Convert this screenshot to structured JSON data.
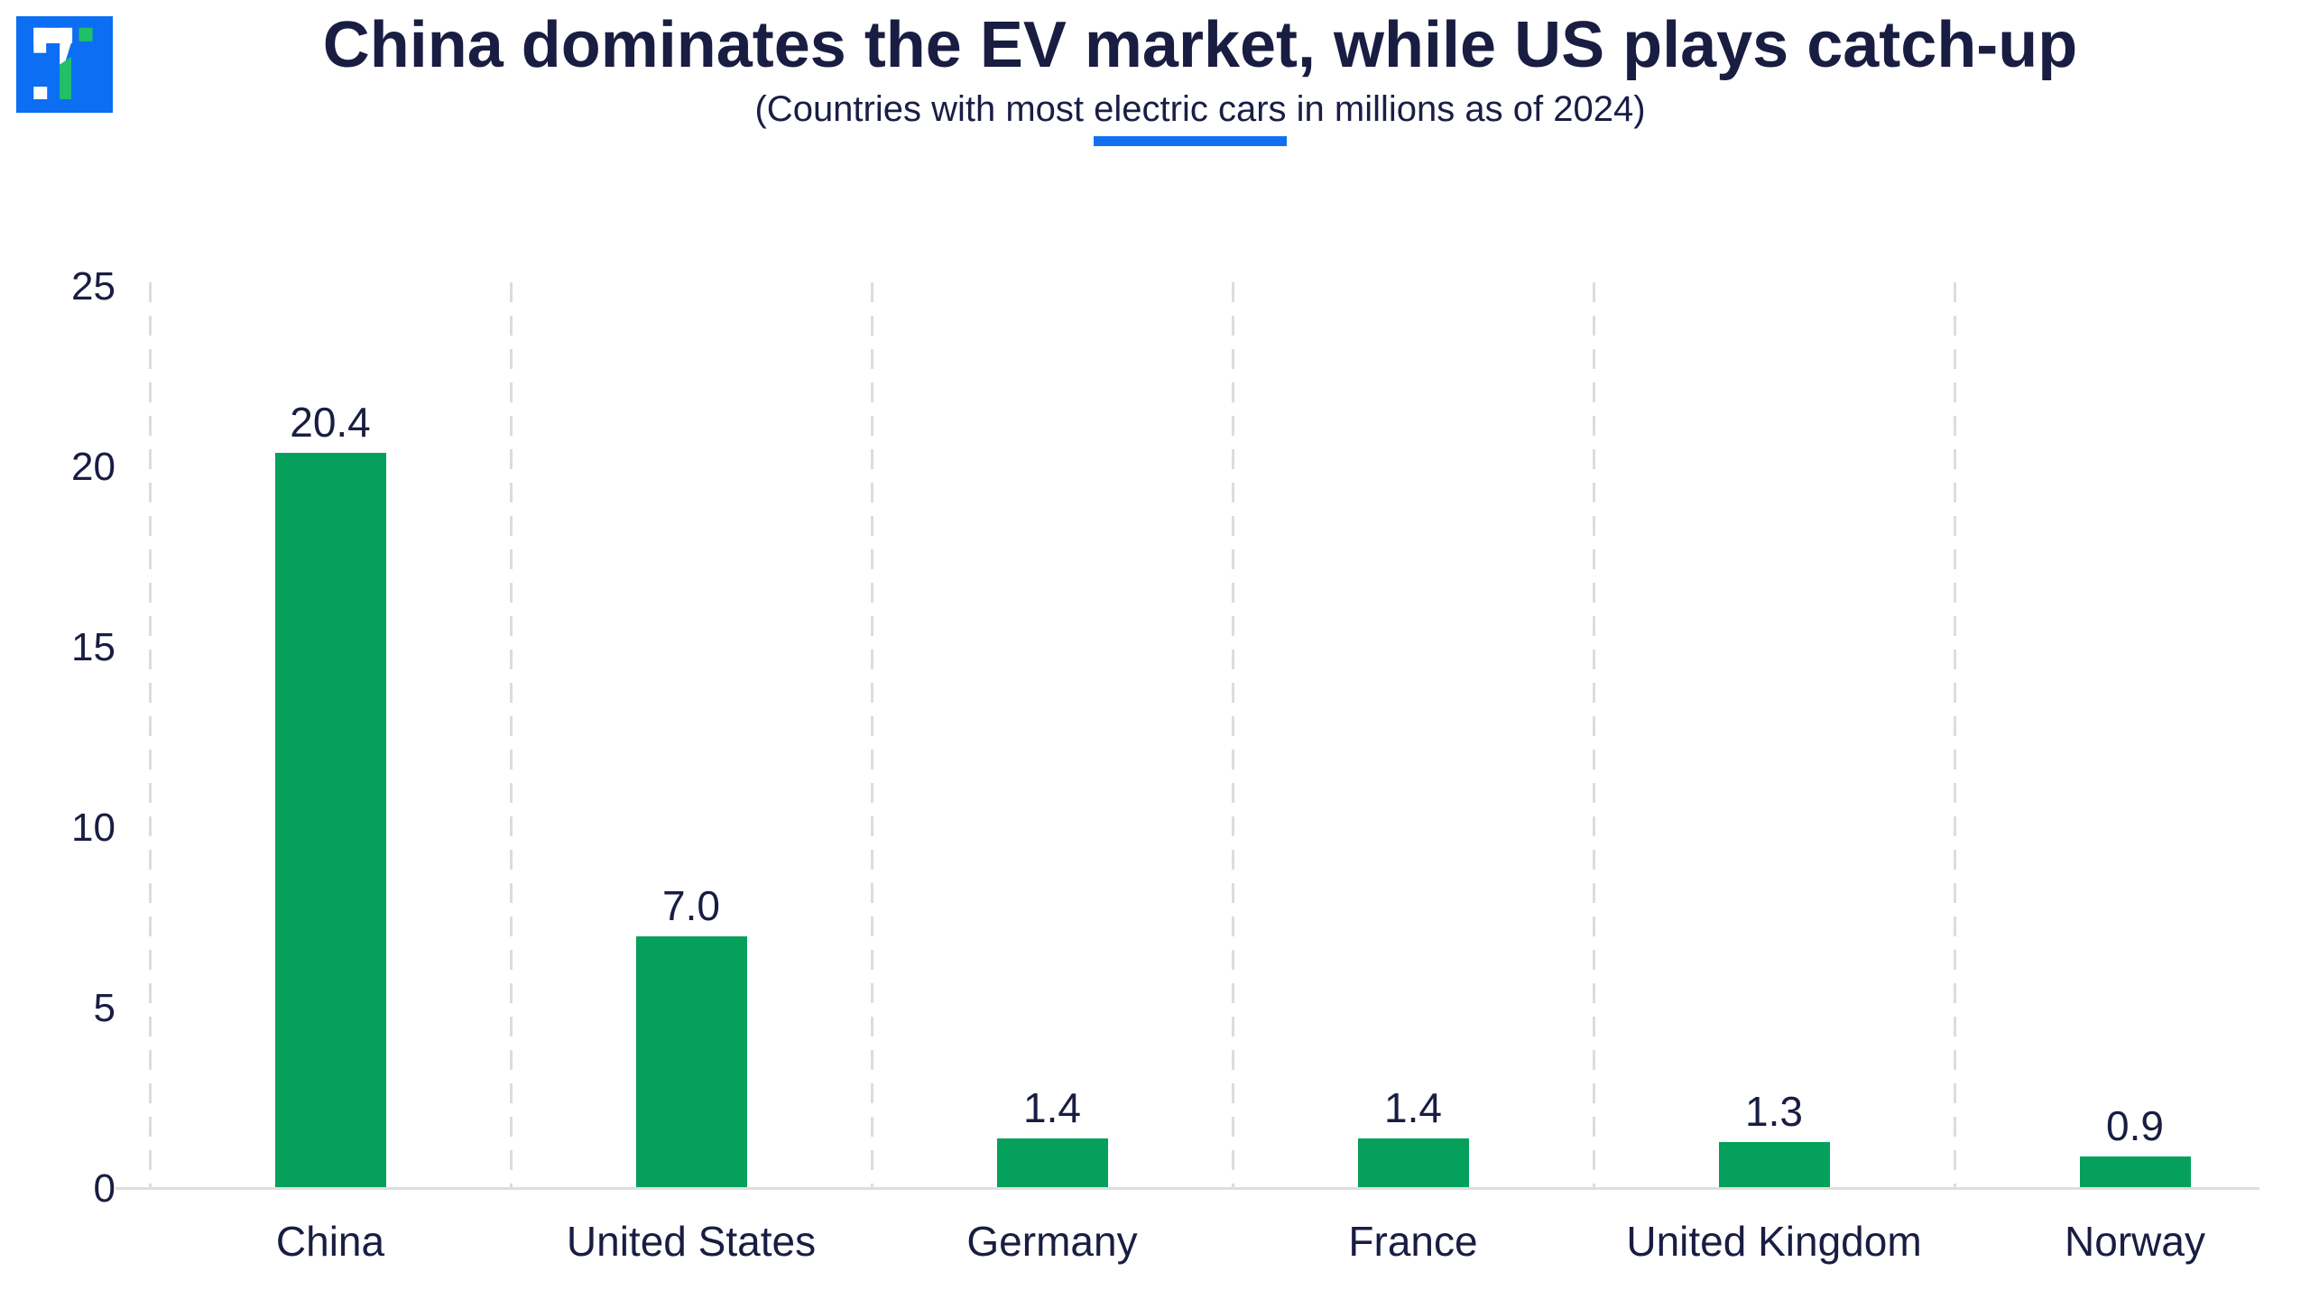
{
  "header": {
    "title": "China dominates the EV market, while US plays catch-up",
    "subtitle": {
      "prefix": "(Countries with most ",
      "highlight": "electric cars",
      "suffix": " in millions as of 2024)"
    }
  },
  "logo": {
    "name": "brand-logo",
    "colors": {
      "blue": "#0c6ef2",
      "green": "#22c066",
      "white": "#ffffff"
    }
  },
  "accent": {
    "underline_blue": "#1170f2",
    "text_navy": "#191d42"
  },
  "chart_data": {
    "type": "bar",
    "title": "China dominates the EV market, while US plays catch-up",
    "subtitle": "(Countries with most electric cars in millions as of 2024)",
    "categories": [
      "China",
      "United States",
      "Germany",
      "France",
      "United Kingdom",
      "Norway"
    ],
    "values": [
      20.4,
      7.0,
      1.4,
      1.4,
      1.3,
      0.9
    ],
    "value_labels": [
      "20.4",
      "7.0",
      "1.4",
      "1.4",
      "1.3",
      "0.9"
    ],
    "y_ticks": [
      0,
      5,
      10,
      15,
      20,
      25
    ],
    "y_tick_labels": [
      "0",
      "5",
      "10",
      "15",
      "20",
      "25"
    ],
    "ylim": [
      0,
      25
    ],
    "xlabel": "",
    "ylabel": "",
    "bar_color": "#05a15c",
    "label_color": "#191d42",
    "gridline_color": "#dcdcdc",
    "grid": "vertical-dashed-only",
    "legend": "none"
  }
}
